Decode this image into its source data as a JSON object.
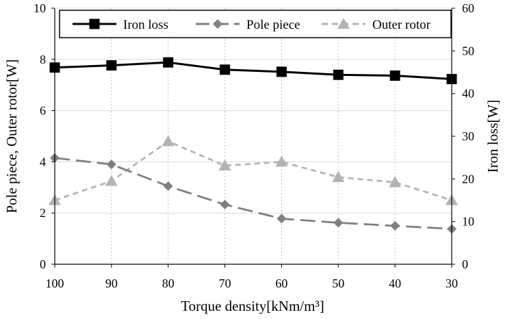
{
  "chart_data": {
    "type": "line",
    "x": [
      "100",
      "90",
      "80",
      "70",
      "60",
      "50",
      "40",
      "30"
    ],
    "xlabel": "Torque density[kNm/m³]",
    "ylabel_left": "Pole piece, Outer rotor[W]",
    "ylabel_right": "Iron loss[W]",
    "ylim_left": [
      0,
      10
    ],
    "yticks_left": [
      "0",
      "2",
      "4",
      "6",
      "8",
      "10"
    ],
    "ylim_right": [
      0,
      60
    ],
    "yticks_right": [
      "0",
      "10",
      "20",
      "30",
      "40",
      "50",
      "60"
    ],
    "grid": "horizontal solid, vertical dotted",
    "legend_position": "top",
    "series": [
      {
        "name": "Iron loss",
        "axis": "right",
        "color": "#000000",
        "line_style": "solid",
        "marker": "square",
        "values": [
          46.1,
          46.6,
          47.3,
          45.6,
          45.1,
          44.4,
          44.2,
          43.4
        ]
      },
      {
        "name": "Pole piece",
        "axis": "left",
        "color": "#7f7f7f",
        "line_style": "long-dash",
        "marker": "diamond",
        "values": [
          4.15,
          3.9,
          3.05,
          2.33,
          1.78,
          1.62,
          1.5,
          1.38
        ]
      },
      {
        "name": "Outer rotor",
        "axis": "left",
        "color": "#b3b3b3",
        "line_style": "short-dash",
        "marker": "triangle",
        "values": [
          2.5,
          3.25,
          4.8,
          3.85,
          4.0,
          3.4,
          3.2,
          2.5
        ]
      }
    ]
  }
}
